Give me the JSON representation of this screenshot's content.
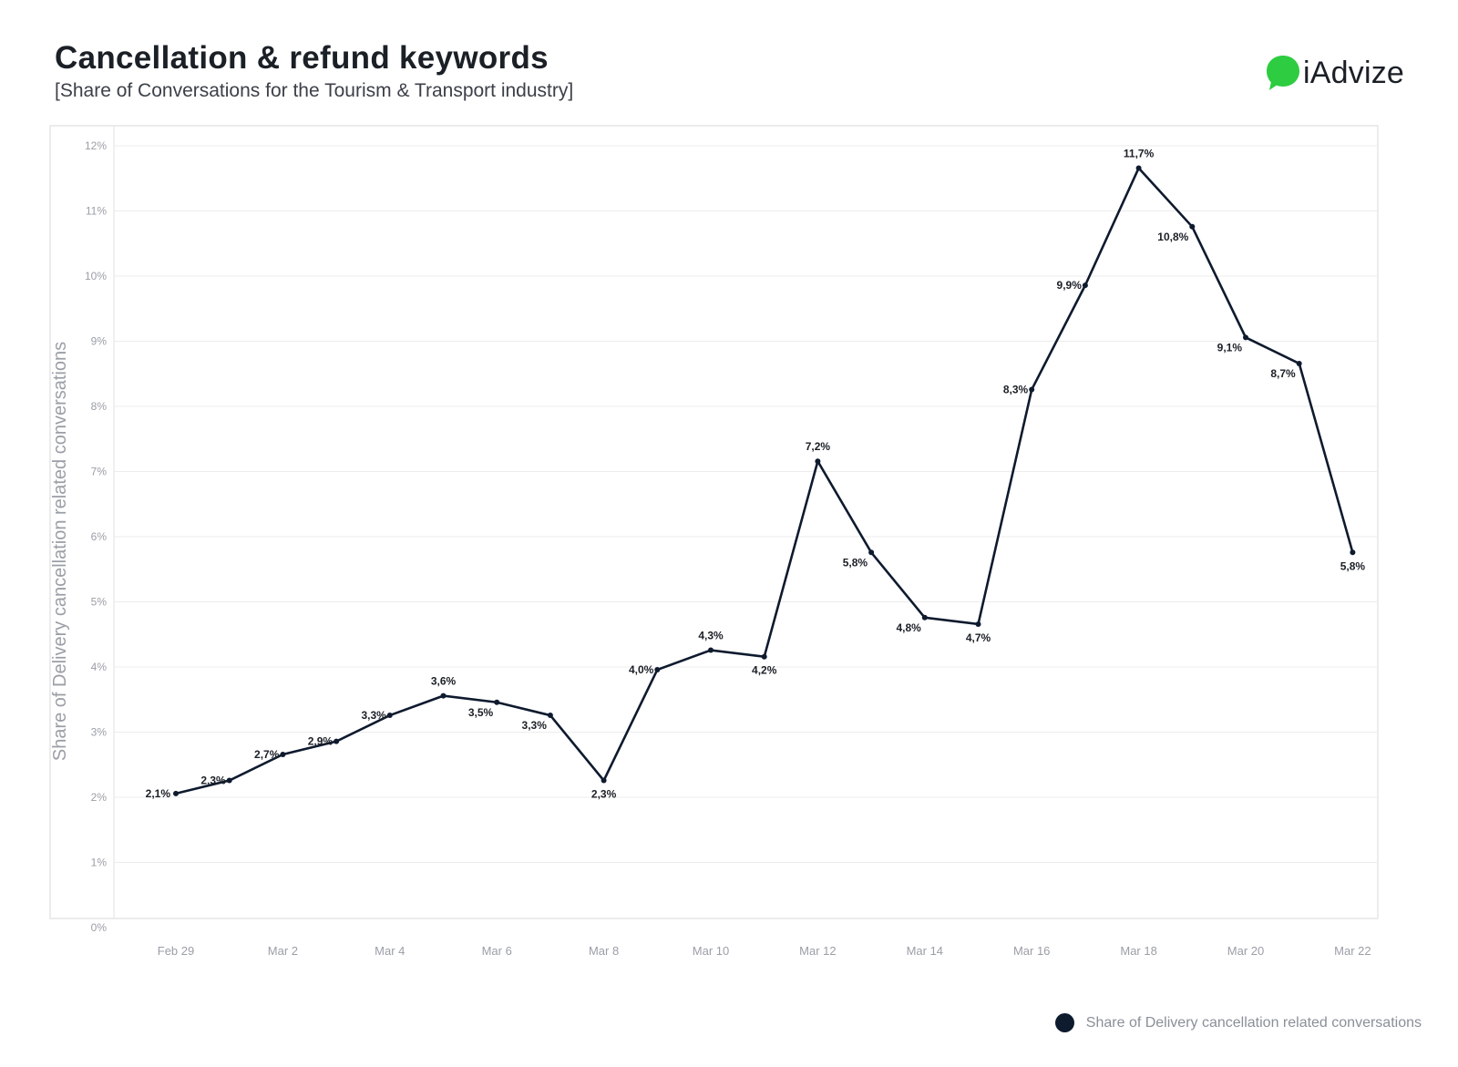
{
  "header": {
    "title": "Cancellation & refund keywords",
    "subtitle": "[Share of Conversations for the Tourism & Transport industry]"
  },
  "brand": {
    "logo_text": "iAdvize",
    "logo_color": "#2ecc40"
  },
  "colors": {
    "line": "#0e1a2e",
    "grid": "#ececec",
    "axis_text": "#9a9ea6",
    "data_label": "#1b1f26"
  },
  "chart_data": {
    "type": "line",
    "title": "Cancellation & refund keywords",
    "subtitle": "[Share of Conversations for the Tourism & Transport industry]",
    "xlabel": "",
    "ylabel": "Share of Delivery cancellation related conversations",
    "ylim": [
      0,
      12
    ],
    "y_ticks": [
      "0%",
      "1%",
      "2%",
      "3%",
      "4%",
      "5%",
      "6%",
      "7%",
      "8%",
      "9%",
      "10%",
      "11%",
      "12%"
    ],
    "x_tick_labels": [
      "Feb 29",
      "Mar 2",
      "Mar 4",
      "Mar 6",
      "Mar 8",
      "Mar 10",
      "Mar 12",
      "Mar 14",
      "Mar 16",
      "Mar 18",
      "Mar 20",
      "Mar 22"
    ],
    "x": [
      "Feb 29",
      "Mar 1",
      "Mar 2",
      "Mar 3",
      "Mar 4",
      "Mar 5",
      "Mar 6",
      "Mar 7",
      "Mar 8",
      "Mar 9",
      "Mar 10",
      "Mar 11",
      "Mar 12",
      "Mar 13",
      "Mar 14",
      "Mar 15",
      "Mar 16",
      "Mar 17",
      "Mar 18",
      "Mar 19",
      "Mar 20",
      "Mar 21",
      "Mar 22"
    ],
    "grid": true,
    "legend_position": "bottom-right",
    "series": [
      {
        "name": "Share of Delivery cancellation related conversations",
        "values": [
          2.1,
          2.3,
          2.7,
          2.9,
          3.3,
          3.6,
          3.5,
          3.3,
          2.3,
          4.0,
          4.3,
          4.2,
          7.2,
          5.8,
          4.8,
          4.7,
          8.3,
          9.9,
          11.7,
          10.8,
          9.1,
          8.7,
          5.8
        ],
        "labels": [
          "2,1%",
          "2,3%",
          "2,7%",
          "2,9%",
          "3,3%",
          "3,6%",
          "3,5%",
          "3,3%",
          "2,3%",
          "4,0%",
          "4,3%",
          "4,2%",
          "7,2%",
          "5,8%",
          "4,8%",
          "4,7%",
          "8,3%",
          "9,9%",
          "11,7%",
          "10,8%",
          "9,1%",
          "8,7%",
          "5,8%"
        ]
      }
    ]
  }
}
